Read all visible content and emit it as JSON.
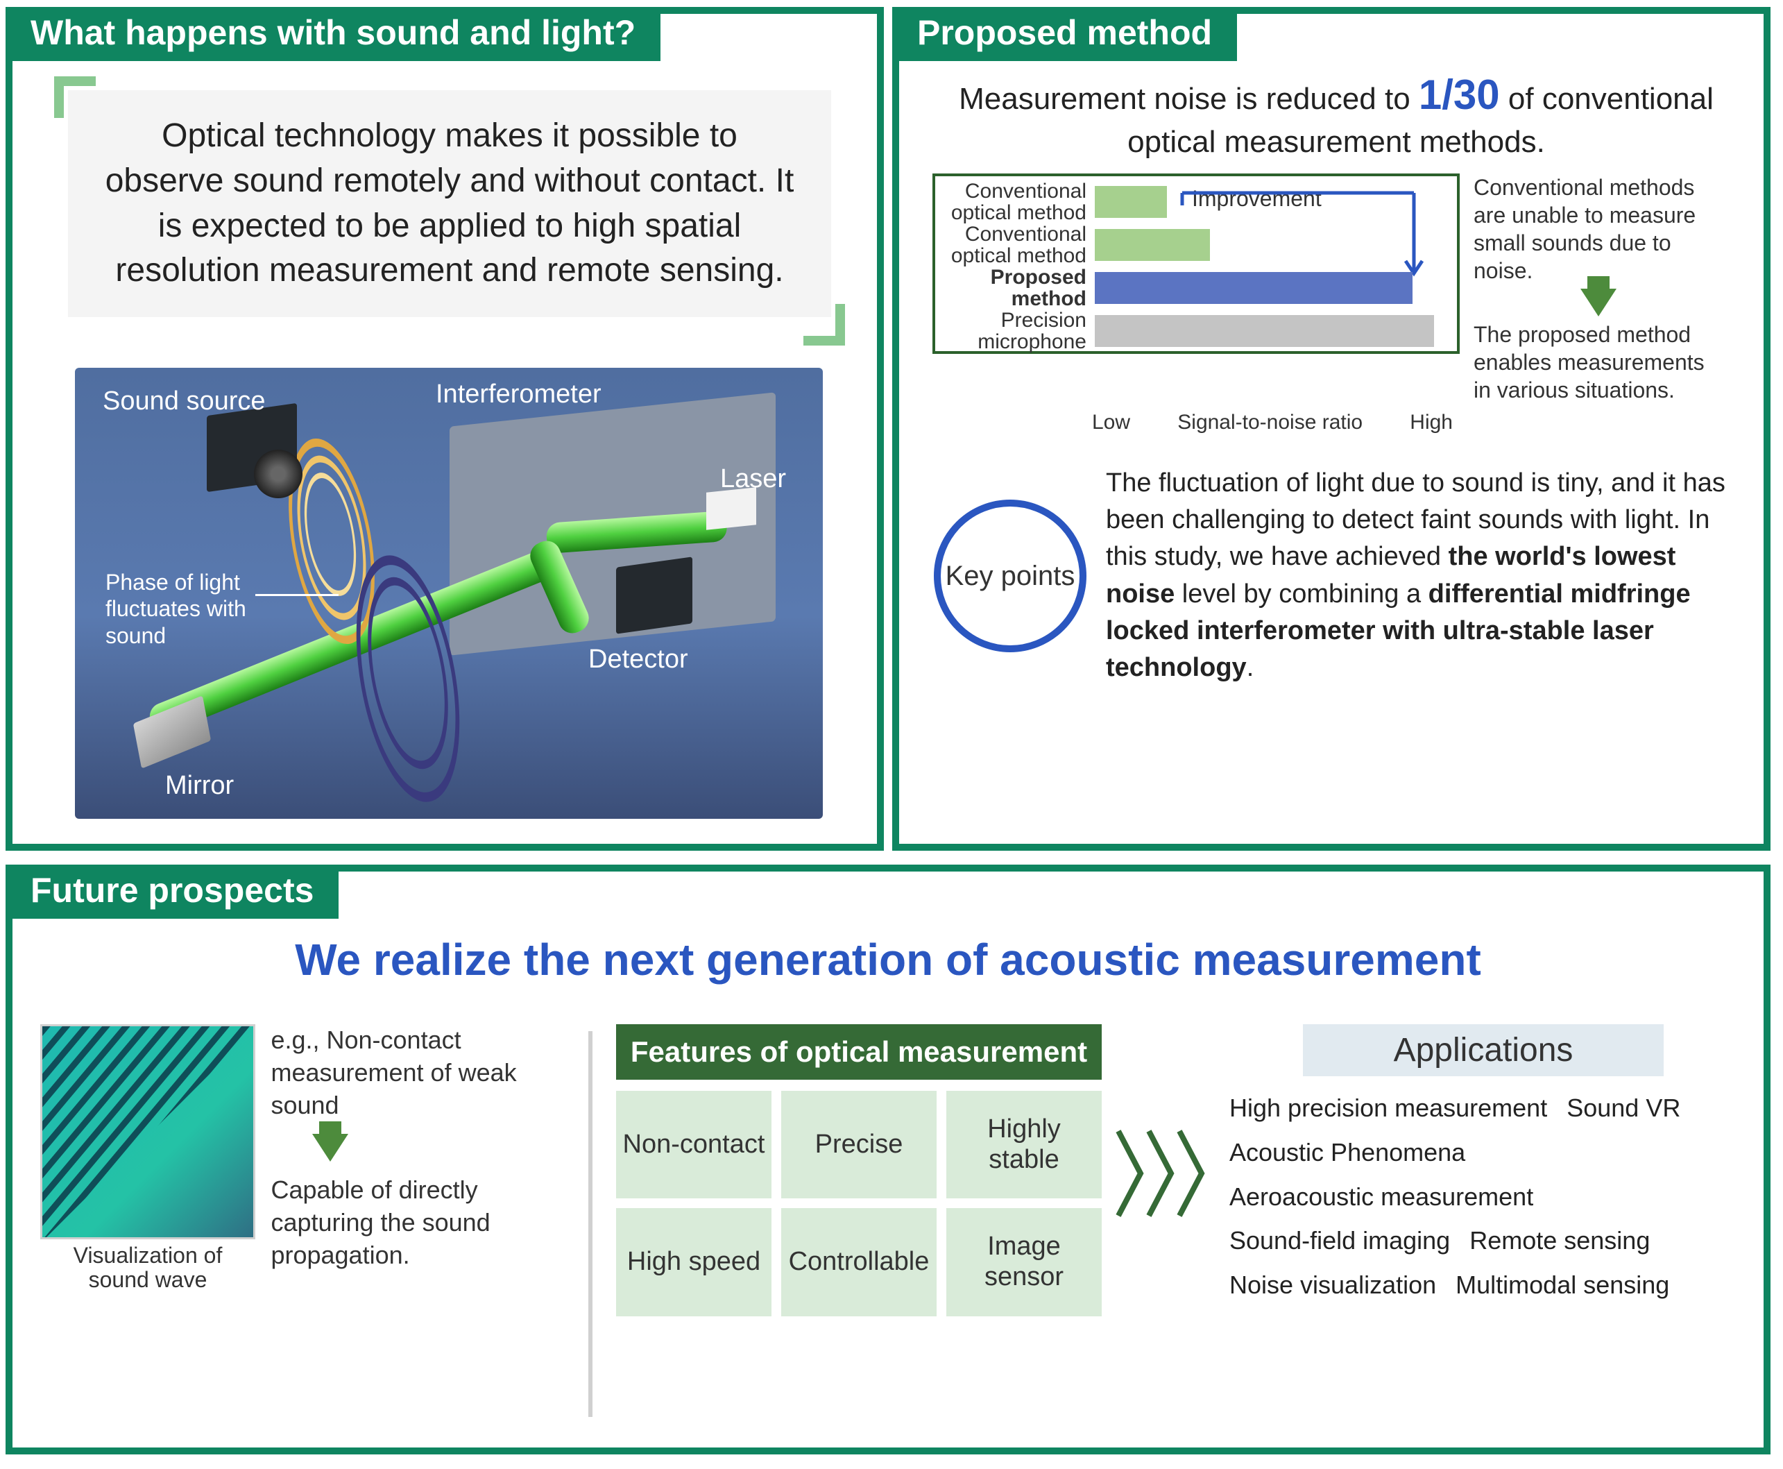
{
  "colors": {
    "teal": "#0f8560",
    "accent_green": "#88c890",
    "blue": "#2a56c0",
    "dark_green": "#356a36",
    "chart_border": "#2c612c",
    "bar_light_green": "#a6d08e",
    "bar_blue": "#5b74c2",
    "bar_gray": "#c4c4c4",
    "pale_green": "#d9ebd9",
    "pale_blue": "#e1eaf0"
  },
  "panel1": {
    "title": "What happens with sound and light?",
    "callout": "Optical technology makes it possible to observe sound remotely and without contact. It is expected to be applied to high spatial resolution measurement and remote sensing.",
    "diagram_labels": {
      "sound_source": "Sound source",
      "interferometer": "Interferometer",
      "laser": "Laser",
      "detector": "Detector",
      "mirror": "Mirror",
      "phase": "Phase of light fluctuates with sound"
    }
  },
  "panel2": {
    "title": "Proposed method",
    "claim_pre": "Measurement noise is reduced to ",
    "claim_num": "1/30",
    "claim_post": " of conventional optical measurement methods.",
    "chart": {
      "type": "bar-horizontal",
      "xlabel_low": "Low",
      "xlabel_mid": "Signal-to-noise ratio",
      "xlabel_high": "High",
      "improvement_label": "Improvement",
      "categories": [
        {
          "label": "Conventional optical method",
          "value": 0.2,
          "color": "#a6d08e",
          "bold": false
        },
        {
          "label": "Conventional optical method",
          "value": 0.32,
          "color": "#a6d08e",
          "bold": false
        },
        {
          "label": "Proposed method",
          "value": 0.88,
          "color": "#5b74c2",
          "bold": true
        },
        {
          "label": "Precision microphone",
          "value": 0.94,
          "color": "#c4c4c4",
          "bold": false
        }
      ]
    },
    "note_top": "Conventional methods are unable to measure small sounds due to noise.",
    "note_bottom": "The proposed method enables measurements in various situations.",
    "keypoints_label": "Key points",
    "keypoints_text_1": "The fluctuation of light due to sound is tiny, and it has been challenging to detect faint sounds with light. In this study, we have achieved ",
    "keypoints_bold_1": "the world's lowest noise",
    "keypoints_text_2": " level by combining a ",
    "keypoints_bold_2": "differential midfringe locked interferometer with ultra-stable laser technology",
    "keypoints_text_3": "."
  },
  "panel3": {
    "title": "Future prospects",
    "headline": "We realize the next generation of acoustic measurement",
    "viz_caption": "Visualization of sound wave",
    "eg_text": "e.g., Non-contact measurement of weak sound",
    "capable_text": "Capable of directly capturing the sound propagation.",
    "features_title": "Features of optical measurement",
    "features": [
      "Non-contact",
      "Precise",
      "Highly stable",
      "High speed",
      "Controllable",
      "Image sensor"
    ],
    "apps_title": "Applications",
    "apps": [
      "High precision measurement",
      "Sound VR",
      "Acoustic Phenomena",
      "Aeroacoustic measurement",
      "Sound-field imaging",
      "Remote sensing",
      "Noise visualization",
      "Multimodal sensing"
    ]
  }
}
